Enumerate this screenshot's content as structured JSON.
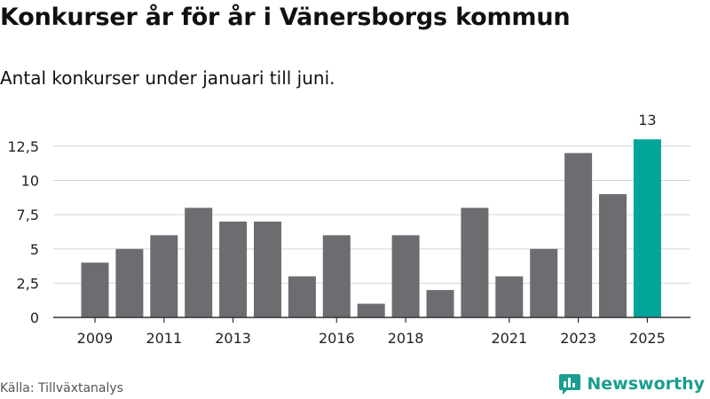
{
  "header": {
    "title": "Konkurser år för år i Vänersborgs kommun",
    "subtitle": "Antal konkurser under januari till juni."
  },
  "footer": {
    "source": "Källa: Tillväxtanalys",
    "brand": "Newsworthy"
  },
  "colors": {
    "bar": "#6d6c71",
    "highlight": "#00a499",
    "grid": "#d6d6d6",
    "axis": "#333333",
    "brand": "#1a9e8f"
  },
  "chart_data": {
    "type": "bar",
    "categories": [
      "2009",
      "2010",
      "2011",
      "2012",
      "2013",
      "2014",
      "2015",
      "2016",
      "2017",
      "2018",
      "2019",
      "2020",
      "2021",
      "2022",
      "2023",
      "2024",
      "2025"
    ],
    "values": [
      4,
      5,
      6,
      8,
      7,
      7,
      3,
      6,
      1,
      6,
      2,
      8,
      3,
      5,
      12,
      9,
      13
    ],
    "highlight_index": 16,
    "data_labels": [
      {
        "index": 16,
        "text": "13"
      }
    ],
    "x_tick_labels": [
      {
        "index": 0,
        "text": "2009"
      },
      {
        "index": 2,
        "text": "2011"
      },
      {
        "index": 4,
        "text": "2013"
      },
      {
        "index": 7,
        "text": "2016"
      },
      {
        "index": 9,
        "text": "2018"
      },
      {
        "index": 12,
        "text": "2021"
      },
      {
        "index": 14,
        "text": "2023"
      },
      {
        "index": 16,
        "text": "2025"
      }
    ],
    "y_ticks": [
      {
        "value": 0,
        "text": "0"
      },
      {
        "value": 2.5,
        "text": "2,5"
      },
      {
        "value": 5,
        "text": "5"
      },
      {
        "value": 7.5,
        "text": "7,5"
      },
      {
        "value": 10,
        "text": "10"
      },
      {
        "value": 12.5,
        "text": "12,5"
      }
    ],
    "ylim": [
      0,
      13
    ],
    "grid": true,
    "legend": "none"
  }
}
